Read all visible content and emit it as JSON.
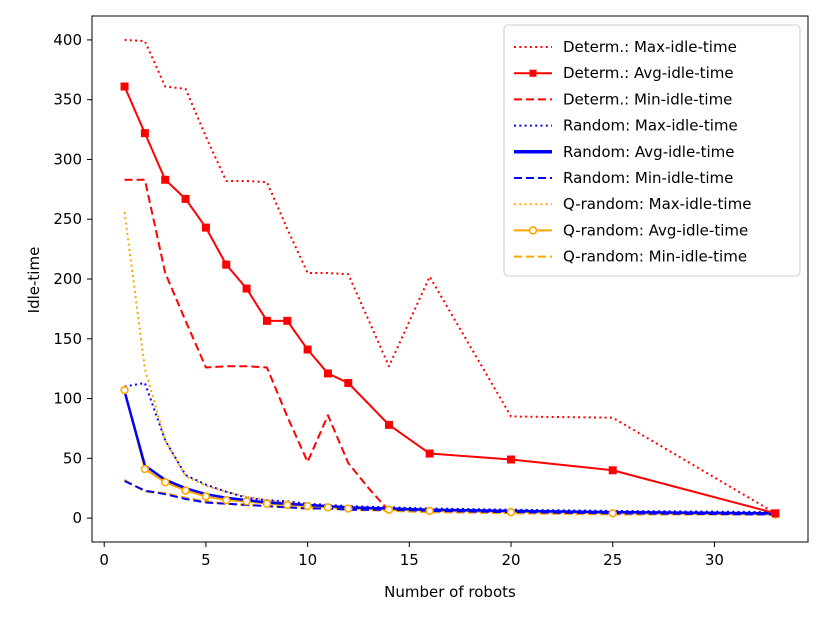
{
  "chart_data": {
    "type": "line",
    "title": "",
    "xlabel": "Number of robots",
    "ylabel": "Idle-time",
    "xlim": [
      -0.6,
      34.6
    ],
    "ylim": [
      -20,
      420
    ],
    "xticks": [
      0,
      5,
      10,
      15,
      20,
      25,
      30
    ],
    "yticks": [
      0,
      50,
      100,
      150,
      200,
      250,
      300,
      350,
      400
    ],
    "grid": false,
    "legend_position": "top-right",
    "series": [
      {
        "name": "Determ.: Max-idle-time",
        "color": "#ff0000",
        "dash": "dotted",
        "marker": "none",
        "width": 2,
        "x": [
          1,
          2,
          3,
          4,
          5,
          6,
          7,
          8,
          9,
          10,
          11,
          12,
          14,
          16,
          20,
          25,
          33
        ],
        "y": [
          400,
          399,
          361,
          359,
          319,
          282,
          282,
          281,
          242,
          205,
          205,
          204,
          127,
          202,
          85,
          84,
          4
        ]
      },
      {
        "name": "Determ.: Avg-idle-time",
        "color": "#ff0000",
        "dash": "solid",
        "marker": "square",
        "width": 2,
        "x": [
          1,
          2,
          3,
          4,
          5,
          6,
          7,
          8,
          9,
          10,
          11,
          12,
          14,
          16,
          20,
          25,
          33
        ],
        "y": [
          361,
          322,
          283,
          267,
          243,
          212,
          192,
          165,
          165,
          141,
          121,
          113,
          78,
          54,
          49,
          40,
          4
        ]
      },
      {
        "name": "Determ.: Min-idle-time",
        "color": "#ff0000",
        "dash": "dashed",
        "marker": "none",
        "width": 2,
        "x": [
          1,
          2,
          3,
          4,
          5,
          6,
          7,
          8,
          9,
          10,
          11,
          12,
          13,
          14
        ],
        "y": [
          283,
          283,
          205,
          165,
          126,
          127,
          127,
          126,
          85,
          47,
          86,
          46,
          25,
          6
        ]
      },
      {
        "name": "Random: Max-idle-time",
        "color": "#0000ff",
        "dash": "dotted",
        "marker": "none",
        "width": 2,
        "x": [
          1,
          2,
          3,
          4,
          5,
          6,
          7,
          8,
          9,
          10,
          11,
          12,
          14,
          16,
          20,
          25,
          33
        ],
        "y": [
          110,
          113,
          65,
          36,
          28,
          22,
          17,
          15,
          14,
          12,
          11,
          10,
          9,
          8,
          7,
          6,
          5
        ]
      },
      {
        "name": "Random: Avg-idle-time",
        "color": "#0000ff",
        "dash": "solid",
        "marker": "none",
        "width": 2.5,
        "x": [
          1,
          2,
          3,
          4,
          5,
          6,
          7,
          8,
          9,
          10,
          11,
          12,
          14,
          16,
          20,
          25,
          33
        ],
        "y": [
          106,
          44,
          32,
          25,
          20,
          17,
          15,
          13,
          12,
          11,
          10,
          9,
          8,
          7,
          6,
          5,
          4
        ]
      },
      {
        "name": "Random: Min-idle-time",
        "color": "#0000ff",
        "dash": "dashed",
        "marker": "none",
        "width": 2,
        "x": [
          1,
          2,
          3,
          4,
          5,
          6,
          7,
          8,
          9,
          10,
          11,
          12,
          14,
          16,
          20,
          25,
          33
        ],
        "y": [
          31,
          23,
          20,
          16,
          13,
          12,
          11,
          10,
          9,
          8,
          8,
          7,
          7,
          6,
          5,
          4,
          3
        ]
      },
      {
        "name": "Q-random: Max-idle-time",
        "color": "#ffa500",
        "dash": "dotted",
        "marker": "none",
        "width": 2,
        "x": [
          1,
          2,
          3,
          4,
          5,
          6,
          7,
          8,
          9,
          10,
          11,
          12,
          14,
          16,
          20,
          25,
          33
        ],
        "y": [
          256,
          125,
          65,
          35,
          27,
          22,
          18,
          15,
          13,
          11,
          10,
          9,
          8,
          7,
          6,
          5,
          4
        ]
      },
      {
        "name": "Q-random: Avg-idle-time",
        "color": "#ffa500",
        "dash": "solid",
        "marker": "circle",
        "width": 2,
        "x": [
          1,
          2,
          3,
          4,
          5,
          6,
          7,
          8,
          9,
          10,
          11,
          12,
          14,
          16,
          20,
          25,
          33
        ],
        "y": [
          107,
          41,
          30,
          23,
          18,
          15,
          14,
          12,
          11,
          10,
          9,
          8,
          7,
          6,
          5,
          4,
          3
        ]
      },
      {
        "name": "Q-random: Min-idle-time",
        "color": "#ffa500",
        "dash": "dashed",
        "marker": "none",
        "width": 2,
        "x": [
          1,
          2,
          3,
          4,
          5,
          6,
          7,
          8,
          9,
          10,
          11,
          12,
          14,
          16,
          20,
          25,
          33
        ],
        "y": [
          32,
          22,
          21,
          17,
          14,
          12,
          11,
          10,
          9,
          8,
          8,
          7,
          6,
          5,
          4,
          3,
          3
        ]
      }
    ]
  }
}
